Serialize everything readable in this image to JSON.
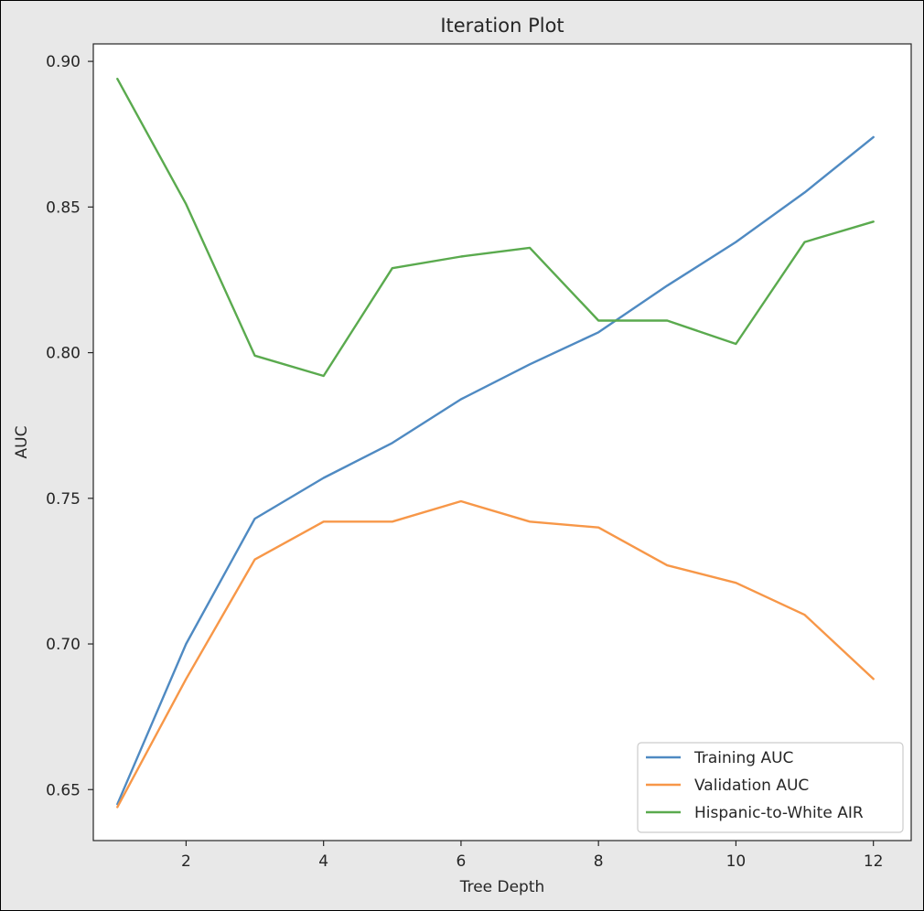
{
  "chart_data": {
    "type": "line",
    "title": "Iteration Plot",
    "xlabel": "Tree Depth",
    "ylabel": "AUC",
    "x": [
      1,
      2,
      3,
      4,
      5,
      6,
      7,
      8,
      9,
      10,
      11,
      12
    ],
    "xlim": [
      0.65,
      12.55
    ],
    "ylim": [
      0.6325,
      0.906
    ],
    "xticks": [
      2,
      4,
      6,
      8,
      10,
      12
    ],
    "xtick_labels": [
      "2",
      "4",
      "6",
      "8",
      "10",
      "12"
    ],
    "yticks": [
      0.65,
      0.7,
      0.75,
      0.8,
      0.85,
      0.9
    ],
    "ytick_labels": [
      "0.65",
      "0.70",
      "0.75",
      "0.80",
      "0.85",
      "0.90"
    ],
    "grid": false,
    "legend_position": "bottom-right",
    "series": [
      {
        "name": "Training AUC",
        "color": "#4f8ac2",
        "values": [
          0.645,
          0.7,
          0.743,
          0.757,
          0.769,
          0.784,
          0.796,
          0.807,
          0.823,
          0.838,
          0.855,
          0.874
        ]
      },
      {
        "name": "Validation AUC",
        "color": "#f79748",
        "values": [
          0.644,
          0.688,
          0.729,
          0.742,
          0.742,
          0.749,
          0.742,
          0.74,
          0.727,
          0.721,
          0.71,
          0.688
        ]
      },
      {
        "name": "Hispanic-to-White AIR",
        "color": "#5aaa4e",
        "values": [
          0.894,
          0.851,
          0.799,
          0.792,
          0.829,
          0.833,
          0.836,
          0.811,
          0.811,
          0.803,
          0.838,
          0.845
        ]
      }
    ]
  }
}
